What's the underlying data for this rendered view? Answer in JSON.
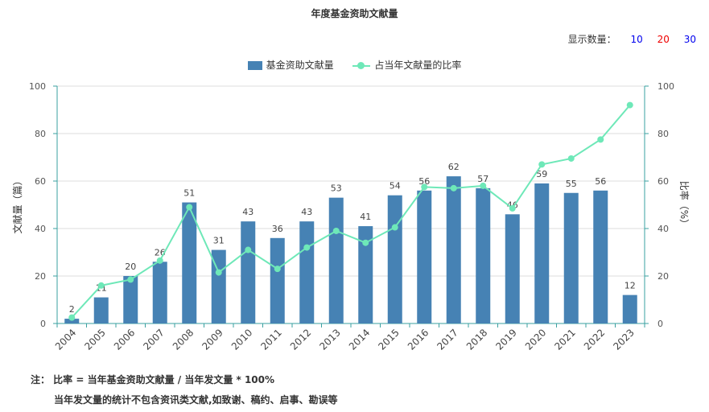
{
  "title": "年度基金资助文献量",
  "count_selector": {
    "label": "显示数量：",
    "options": [
      {
        "text": "10",
        "color": "#0000ee"
      },
      {
        "text": "20",
        "color": "#ee0000"
      },
      {
        "text": "30",
        "color": "#0000ee"
      }
    ]
  },
  "notes": {
    "line1": "注： 比率 = 当年基金资助文献量 / 当年发文量 * 100%",
    "line2": "当年发文量的统计不包含资讯类文献,如致谢、稿约、启事、勘误等"
  },
  "chart_data": {
    "type": "bar",
    "categories": [
      "2004",
      "2005",
      "2006",
      "2007",
      "2008",
      "2009",
      "2010",
      "2011",
      "2012",
      "2013",
      "2014",
      "2015",
      "2016",
      "2017",
      "2018",
      "2019",
      "2020",
      "2021",
      "2022",
      "2023"
    ],
    "series": [
      {
        "name": "基金资助文献量",
        "type": "bar",
        "axis": "left",
        "color": "#4682b4",
        "values": [
          2,
          11,
          20,
          26,
          51,
          31,
          43,
          36,
          43,
          53,
          41,
          54,
          56,
          62,
          57,
          46,
          59,
          55,
          56,
          12
        ]
      },
      {
        "name": "占当年文献量的比率",
        "type": "line",
        "axis": "right",
        "color": "#6ee8b8",
        "values": [
          2.5,
          16,
          18.5,
          26.5,
          49,
          21.5,
          31,
          23,
          32,
          39,
          34,
          40.5,
          57.5,
          57,
          58,
          48.5,
          67,
          69.5,
          77.5,
          92
        ]
      }
    ],
    "ylabel": "文献量（篇）",
    "y2label": "比率（%）",
    "ylim": [
      0,
      100
    ],
    "y2lim": [
      0,
      100
    ],
    "yticks": [
      0,
      20,
      40,
      60,
      80,
      100
    ],
    "y2ticks": [
      0,
      20,
      40,
      60,
      80,
      100
    ],
    "grid": true,
    "legend_position": "top-center"
  }
}
